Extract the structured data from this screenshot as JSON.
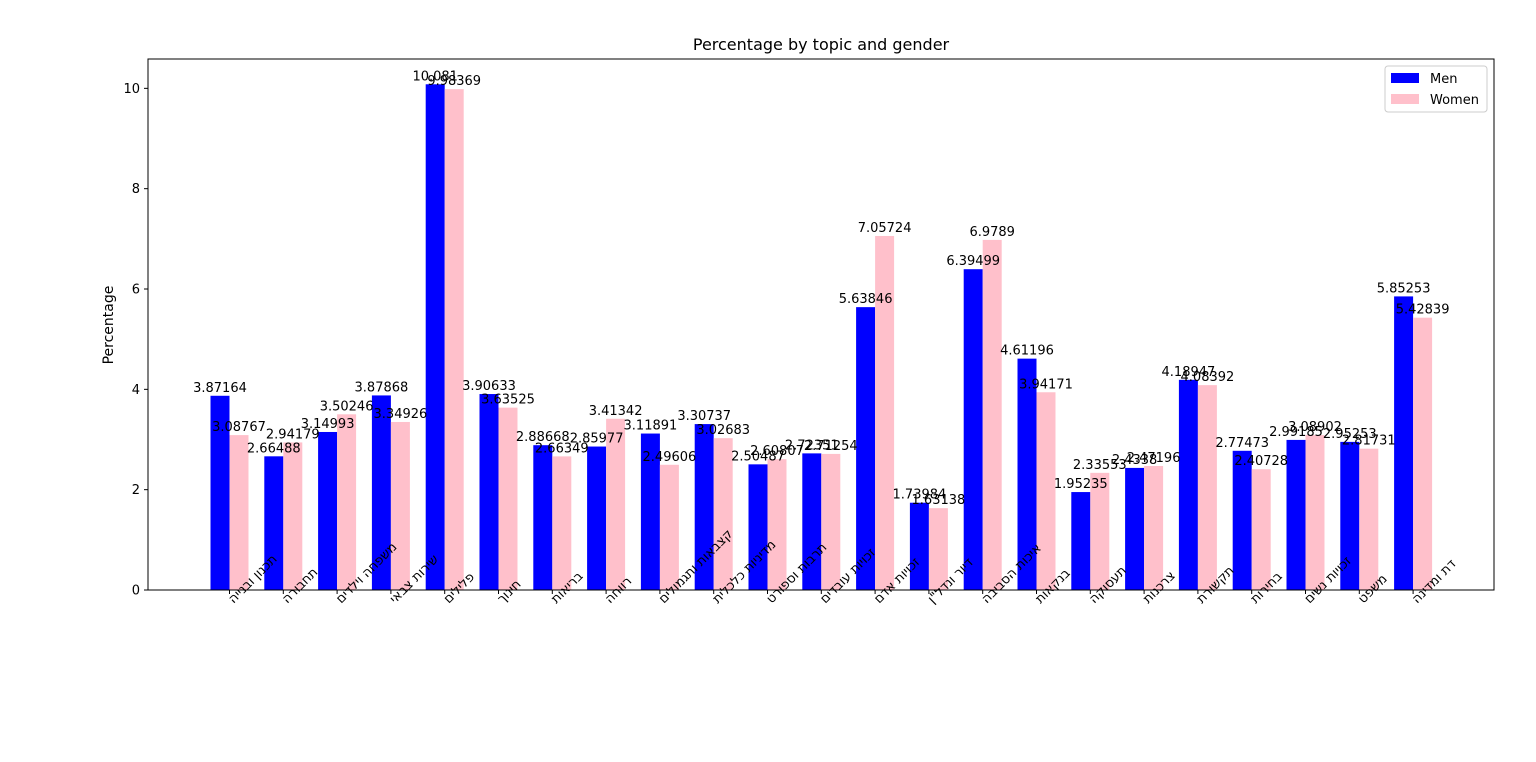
{
  "chart_data": {
    "type": "bar",
    "title": "Percentage by topic and gender",
    "xlabel": "",
    "ylabel": "Percentage",
    "ylim": [
      0,
      10.585
    ],
    "yticks": [
      0,
      2,
      4,
      6,
      8,
      10
    ],
    "legend_position": "top-right",
    "grid": false,
    "categories": [
      "תכנון ובנייה",
      "תחבורה",
      "משפחה וילדים",
      "שירות צבאי",
      "פלילים",
      "חינוך",
      "בריאות",
      "רווחה",
      "קצבאות ותגמולים",
      "מדיניות כלכלית",
      "תרבות וספורט",
      "זכויות עובדים",
      "זכויות אדם",
      "דיור ונדל\"ן",
      "איכות הסביבה",
      "בנקאות",
      "תעסוקה",
      "צרכנות",
      "תקשורת",
      "בחירות",
      "זכויות נשים",
      "משפט",
      "דת ומדינה"
    ],
    "series": [
      {
        "name": "Men",
        "color": "#0000ff",
        "values": [
          3.87164,
          2.66488,
          3.14993,
          3.87868,
          10.081,
          3.90633,
          2.88668,
          2.85977,
          3.11891,
          3.30737,
          2.50487,
          2.72351,
          5.63846,
          1.73984,
          6.39499,
          4.61196,
          1.95235,
          2.4338,
          4.18947,
          2.77473,
          2.99185,
          2.95253,
          5.85253
        ],
        "labels": [
          "3.87164",
          "2.66488",
          "3.14993",
          "3.87868",
          "10.081",
          "3.90633",
          "2.88668",
          "2.85977",
          "3.11891",
          "3.30737",
          "2.50487",
          "2.72351",
          "5.63846",
          "1.73984",
          "6.39499",
          "4.61196",
          "1.95235",
          "2.4338",
          "4.18947",
          "2.77473",
          "2.99185",
          "2.95253",
          "5.85253"
        ]
      },
      {
        "name": "Women",
        "color": "#ffc0cb",
        "values": [
          3.08767,
          2.94179,
          3.50246,
          3.34926,
          9.98369,
          3.63525,
          2.66349,
          3.41342,
          2.49606,
          3.02683,
          2.60807,
          2.71254,
          7.05724,
          1.63138,
          6.9789,
          3.94171,
          2.33553,
          2.47196,
          4.08392,
          2.40728,
          3.08902,
          2.81731,
          5.42839
        ],
        "labels": [
          "3.08767",
          "2.94179",
          "3.50246",
          "3.34926",
          "9.98369",
          "3.63525",
          "2.66349",
          "3.41342",
          "2.49606",
          "3.02683",
          "2.60807",
          "2.71254",
          "7.05724",
          "1.63138",
          "6.9789",
          "3.94171",
          "2.33553",
          "2.47196",
          "4.08392",
          "2.40728",
          "3.08902",
          "2.81731",
          "5.42839"
        ]
      }
    ]
  }
}
